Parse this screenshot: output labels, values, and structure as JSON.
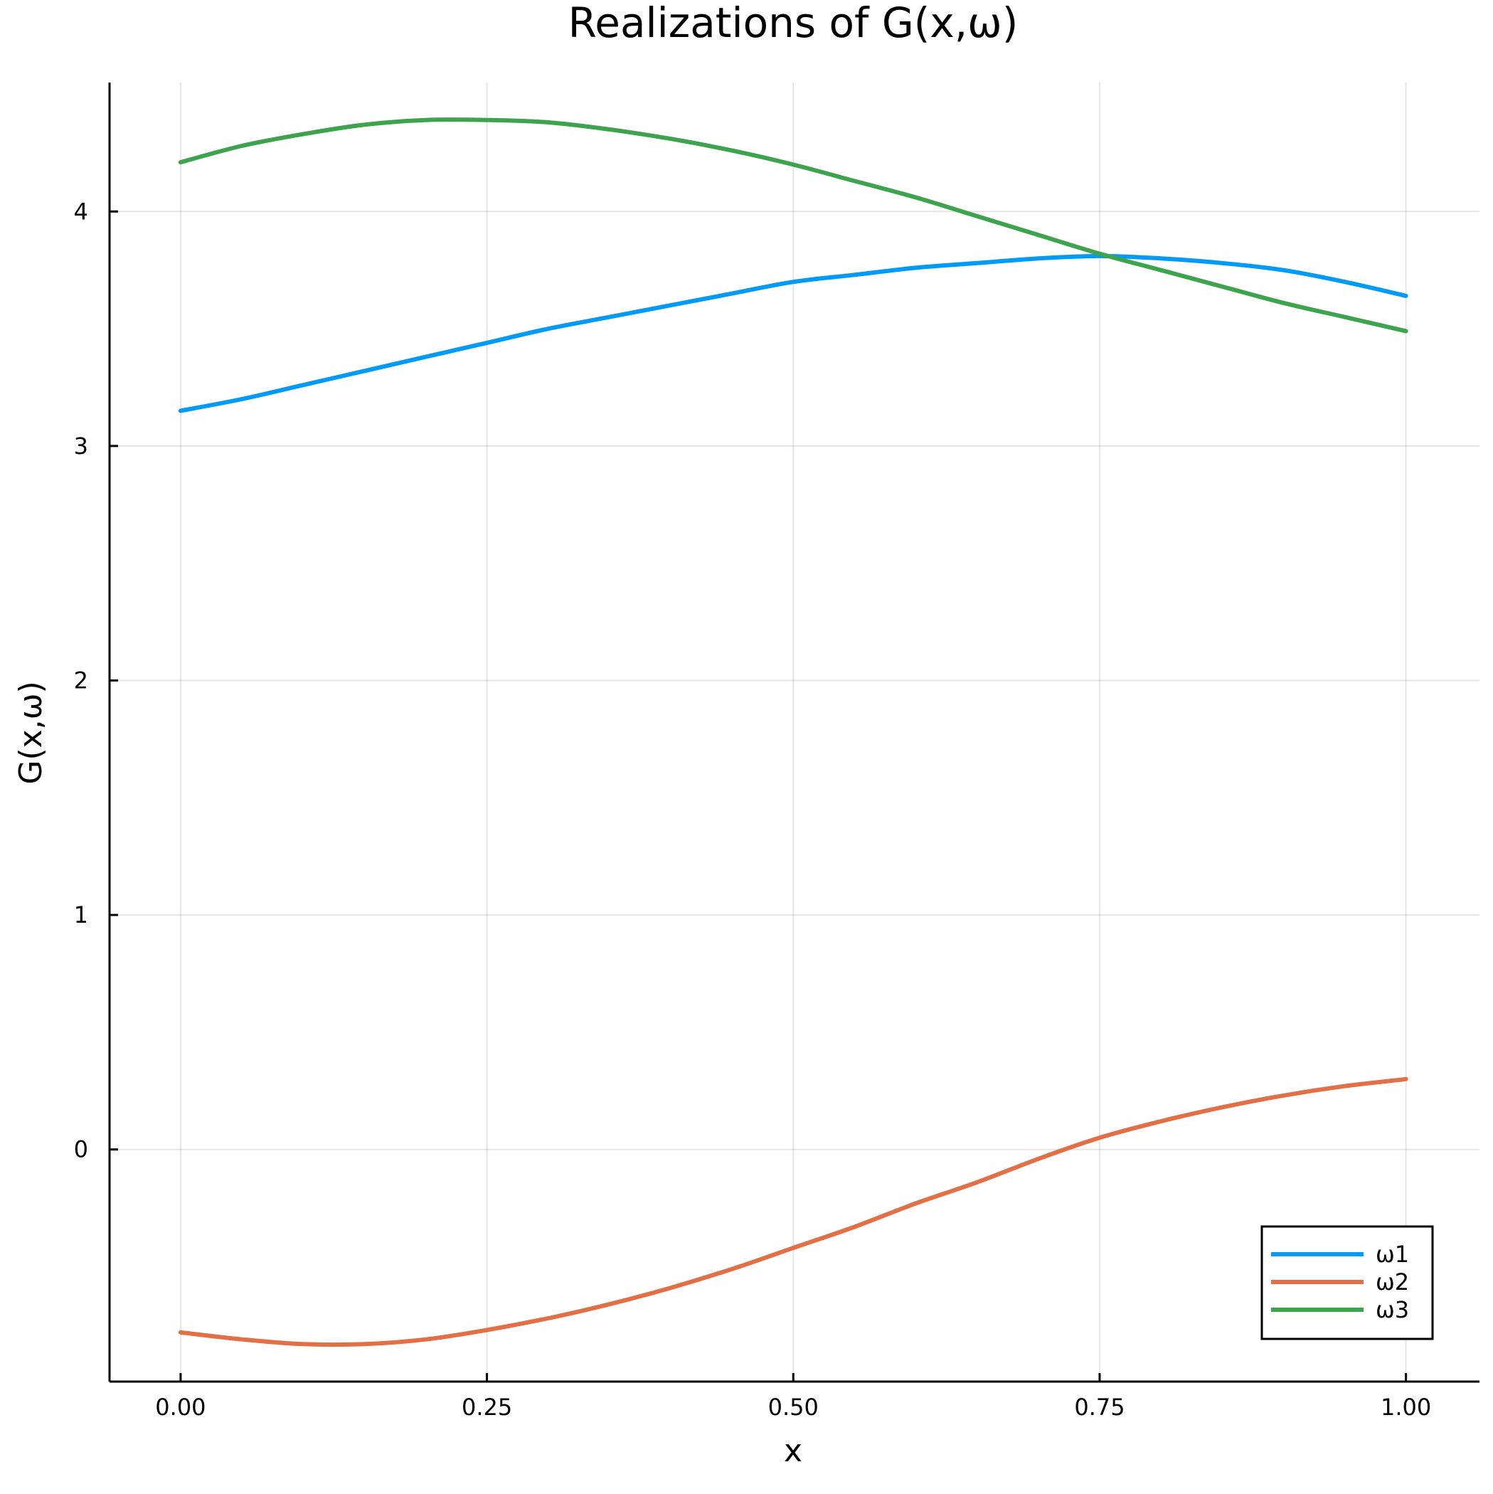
{
  "chart_data": {
    "type": "line",
    "title": "Realizations of G(x,ω)",
    "xlabel": "x",
    "ylabel": "G(x,ω)",
    "xlim": [
      -0.058,
      1.06
    ],
    "ylim": [
      -0.99,
      4.55
    ],
    "xticks": [
      0.0,
      0.25,
      0.5,
      0.75,
      1.0
    ],
    "xtick_labels": [
      "0.00",
      "0.25",
      "0.50",
      "0.75",
      "1.00"
    ],
    "yticks": [
      0,
      1,
      2,
      3,
      4
    ],
    "ytick_labels": [
      "0",
      "1",
      "2",
      "3",
      "4"
    ],
    "grid": true,
    "legend_position": "bottom-right",
    "x": [
      0.0,
      0.05,
      0.1,
      0.15,
      0.2,
      0.25,
      0.3,
      0.35,
      0.4,
      0.45,
      0.5,
      0.55,
      0.6,
      0.65,
      0.7,
      0.75,
      0.8,
      0.85,
      0.9,
      0.95,
      1.0
    ],
    "series": [
      {
        "name": "ω1",
        "color": "#009af9",
        "values": [
          3.15,
          3.2,
          3.26,
          3.32,
          3.38,
          3.44,
          3.5,
          3.55,
          3.6,
          3.65,
          3.7,
          3.73,
          3.76,
          3.78,
          3.8,
          3.81,
          3.8,
          3.78,
          3.75,
          3.7,
          3.64
        ]
      },
      {
        "name": "ω2",
        "color": "#e26f46",
        "values": [
          -0.78,
          -0.81,
          -0.83,
          -0.83,
          -0.81,
          -0.77,
          -0.72,
          -0.66,
          -0.59,
          -0.51,
          -0.42,
          -0.33,
          -0.23,
          -0.14,
          -0.04,
          0.05,
          0.12,
          0.18,
          0.23,
          0.27,
          0.3
        ]
      },
      {
        "name": "ω3",
        "color": "#3da44d",
        "values": [
          4.21,
          4.28,
          4.33,
          4.37,
          4.39,
          4.39,
          4.38,
          4.35,
          4.31,
          4.26,
          4.2,
          4.13,
          4.06,
          3.98,
          3.9,
          3.82,
          3.75,
          3.68,
          3.61,
          3.55,
          3.49
        ]
      }
    ]
  }
}
